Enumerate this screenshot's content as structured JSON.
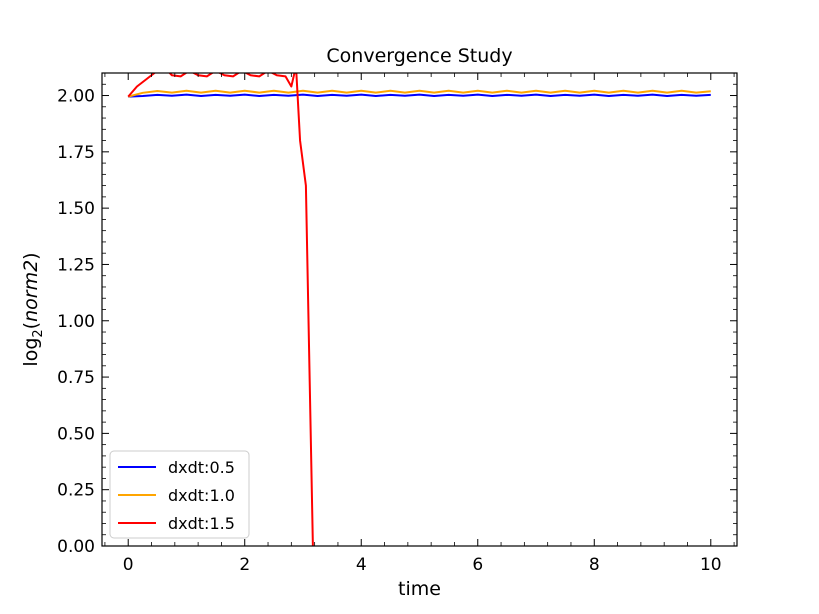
{
  "chart_data": {
    "type": "line",
    "title": "Convergence Study",
    "xlabel": "time",
    "ylabel_prefix": "log",
    "ylabel_subscript": "2",
    "ylabel_arg": "norm2",
    "xlim": [
      -0.45,
      10.45
    ],
    "ylim": [
      0.0,
      2.1
    ],
    "xticks": [
      0,
      2,
      4,
      6,
      8,
      10
    ],
    "xtick_labels": [
      "0",
      "2",
      "4",
      "6",
      "8",
      "10"
    ],
    "yticks": [
      0.0,
      0.25,
      0.5,
      0.75,
      1.0,
      1.25,
      1.5,
      1.75,
      2.0
    ],
    "ytick_labels": [
      "0.00",
      "0.25",
      "0.50",
      "0.75",
      "1.00",
      "1.25",
      "1.50",
      "1.75",
      "2.00"
    ],
    "grid": false,
    "legend_position": "lower-left",
    "series": [
      {
        "name": "dxdt:0.5",
        "color": "#0000ff",
        "x": [
          0,
          0.25,
          0.5,
          0.75,
          1,
          1.25,
          1.5,
          1.75,
          2,
          2.25,
          2.5,
          2.75,
          3,
          3.25,
          3.5,
          3.75,
          4,
          4.25,
          4.5,
          4.75,
          5,
          5.25,
          5.5,
          5.75,
          6,
          6.25,
          6.5,
          6.75,
          7,
          7.25,
          7.5,
          7.75,
          8,
          8.25,
          8.5,
          8.75,
          9,
          9.25,
          9.5,
          9.75,
          10
        ],
        "y": [
          1.995,
          1.998,
          2.003,
          1.999,
          2.004,
          1.998,
          2.003,
          1.999,
          2.004,
          1.998,
          2.003,
          1.999,
          2.004,
          1.998,
          2.003,
          1.999,
          2.004,
          1.998,
          2.003,
          1.999,
          2.004,
          1.998,
          2.003,
          1.999,
          2.004,
          1.998,
          2.003,
          1.999,
          2.004,
          1.998,
          2.003,
          1.999,
          2.004,
          1.998,
          2.003,
          1.999,
          2.004,
          1.998,
          2.003,
          1.999,
          2.003
        ]
      },
      {
        "name": "dxdt:1.0",
        "color": "#ffa500",
        "x": [
          0,
          0.25,
          0.5,
          0.75,
          1,
          1.25,
          1.5,
          1.75,
          2,
          2.25,
          2.5,
          2.75,
          3,
          3.25,
          3.5,
          3.75,
          4,
          4.25,
          4.5,
          4.75,
          5,
          5.25,
          5.5,
          5.75,
          6,
          6.25,
          6.5,
          6.75,
          7,
          7.25,
          7.5,
          7.75,
          8,
          8.25,
          8.5,
          8.75,
          9,
          9.25,
          9.5,
          9.75,
          10
        ],
        "y": [
          1.995,
          2.012,
          2.02,
          2.013,
          2.021,
          2.013,
          2.021,
          2.013,
          2.021,
          2.013,
          2.021,
          2.013,
          2.021,
          2.013,
          2.021,
          2.013,
          2.021,
          2.013,
          2.021,
          2.013,
          2.021,
          2.013,
          2.021,
          2.013,
          2.021,
          2.013,
          2.021,
          2.013,
          2.021,
          2.013,
          2.021,
          2.013,
          2.021,
          2.013,
          2.021,
          2.013,
          2.021,
          2.013,
          2.021,
          2.013,
          2.019
        ]
      },
      {
        "name": "dxdt:1.5",
        "color": "#ff0000",
        "x": [
          0,
          0.15,
          0.3,
          0.45,
          0.6,
          0.75,
          0.9,
          1.05,
          1.2,
          1.35,
          1.5,
          1.65,
          1.8,
          1.95,
          2.1,
          2.25,
          2.4,
          2.55,
          2.7,
          2.8,
          2.88,
          2.95,
          3.05,
          3.17
        ],
        "y": [
          1.995,
          2.04,
          2.07,
          2.1,
          2.13,
          2.09,
          2.085,
          2.11,
          2.09,
          2.085,
          2.11,
          2.09,
          2.085,
          2.11,
          2.09,
          2.085,
          2.11,
          2.09,
          2.085,
          2.04,
          2.13,
          1.8,
          1.6,
          0.0
        ]
      }
    ]
  }
}
